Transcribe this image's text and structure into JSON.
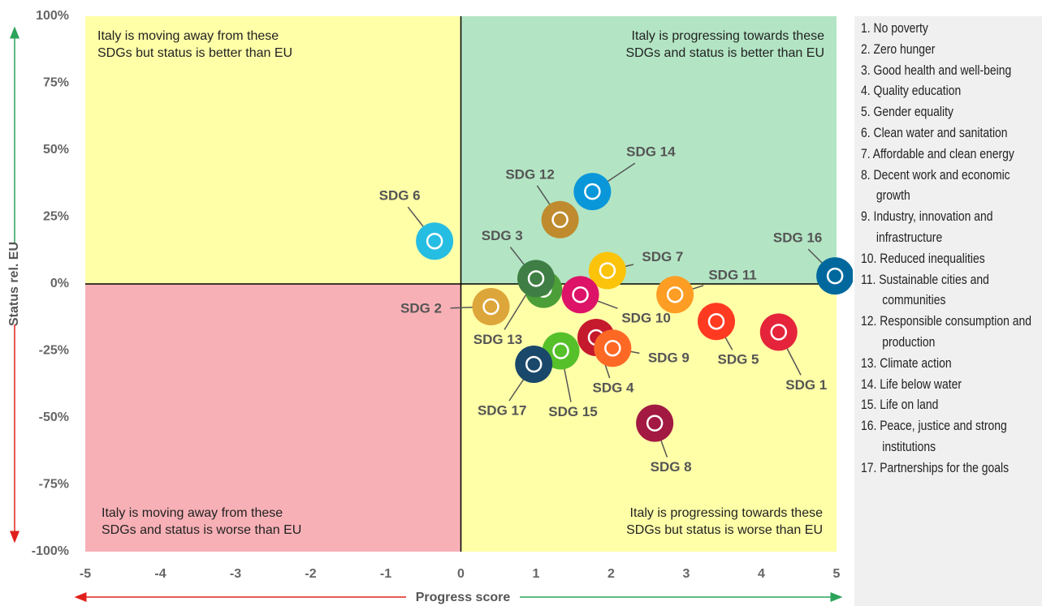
{
  "chart_data": {
    "type": "scatter",
    "x_label": "Progress score",
    "y_label": "Status rel. EU",
    "xlim": [
      -5,
      5
    ],
    "xticks": [
      -5,
      -4,
      -3,
      -2,
      -1,
      0,
      1,
      2,
      3,
      4,
      5
    ],
    "ylim": [
      -100,
      100
    ],
    "yticks": [
      {
        "value": -100,
        "label": "-100%"
      },
      {
        "value": -75,
        "label": "-75%"
      },
      {
        "value": -50,
        "label": "-50%"
      },
      {
        "value": -25,
        "label": "-25%"
      },
      {
        "value": 0,
        "label": "0%"
      },
      {
        "value": 25,
        "label": "25%"
      },
      {
        "value": 50,
        "label": "50%"
      },
      {
        "value": 75,
        "label": "75%"
      },
      {
        "value": 100,
        "label": "100%"
      }
    ],
    "quadrants": {
      "top_left": {
        "text": "Italy is moving away from these SDGs but status is better than EU",
        "color": "#ffffa8"
      },
      "top_right": {
        "text": "Italy is progressing towards these SDGs and status is better than EU",
        "color": "#b3e5c4"
      },
      "bottom_left": {
        "text": "Italy is moving away from these SDGs and status is worse than EU",
        "color": "#f7b0b6"
      },
      "bottom_right": {
        "text": "Italy is progressing towards these SDGs but status is worse than EU",
        "color": "#ffffa8"
      }
    },
    "points": [
      {
        "name": "SDG 1",
        "x": 4.23,
        "y": -18,
        "color": "#e5243b"
      },
      {
        "name": "SDG 2",
        "x": 0.4,
        "y": -8.5,
        "color": "#dda63a"
      },
      {
        "name": "SDG 3",
        "x": 1.1,
        "y": -2,
        "color": "#4c9f38"
      },
      {
        "name": "SDG 4",
        "x": 1.8,
        "y": -20,
        "color": "#c5192d"
      },
      {
        "name": "SDG 5",
        "x": 3.4,
        "y": -14,
        "color": "#ff3a21"
      },
      {
        "name": "SDG 6",
        "x": -0.35,
        "y": 16,
        "color": "#26bde2"
      },
      {
        "name": "SDG 7",
        "x": 1.95,
        "y": 5,
        "color": "#fcc30b"
      },
      {
        "name": "SDG 8",
        "x": 2.58,
        "y": -52,
        "color": "#a21942"
      },
      {
        "name": "SDG 9",
        "x": 2.02,
        "y": -24,
        "color": "#fd6925"
      },
      {
        "name": "SDG 10",
        "x": 1.59,
        "y": -4,
        "color": "#dd1367"
      },
      {
        "name": "SDG 11",
        "x": 2.85,
        "y": -4,
        "color": "#fd9d24"
      },
      {
        "name": "SDG 12",
        "x": 1.32,
        "y": 24,
        "color": "#bf8b2e"
      },
      {
        "name": "SDG 13",
        "x": 1.0,
        "y": 2,
        "color": "#3f7e44"
      },
      {
        "name": "SDG 14",
        "x": 1.75,
        "y": 34.5,
        "color": "#0a97d9"
      },
      {
        "name": "SDG 15",
        "x": 1.33,
        "y": -25,
        "color": "#56c02b"
      },
      {
        "name": "SDG 16",
        "x": 4.98,
        "y": 3,
        "color": "#00689d"
      },
      {
        "name": "SDG 17",
        "x": 0.97,
        "y": -30,
        "color": "#19486a"
      }
    ],
    "legend_items": [
      "1. No poverty",
      "2. Zero hunger",
      "3. Good health and well-being",
      "4. Quality education",
      "5. Gender equality",
      "6. Clean water and sanitation",
      "7. Affordable and clean energy",
      "8. Decent work and economic growth",
      "9. Industry, innovation and infrastructure",
      "10. Reduced inequalities",
      "11. Sustainable cities and communities",
      "12. Responsible consumption and production",
      "13. Climate action",
      "14. Life below water",
      "15. Life on land",
      "16. Peace, justice and strong institutions",
      "17. Partnerships for the goals"
    ]
  }
}
